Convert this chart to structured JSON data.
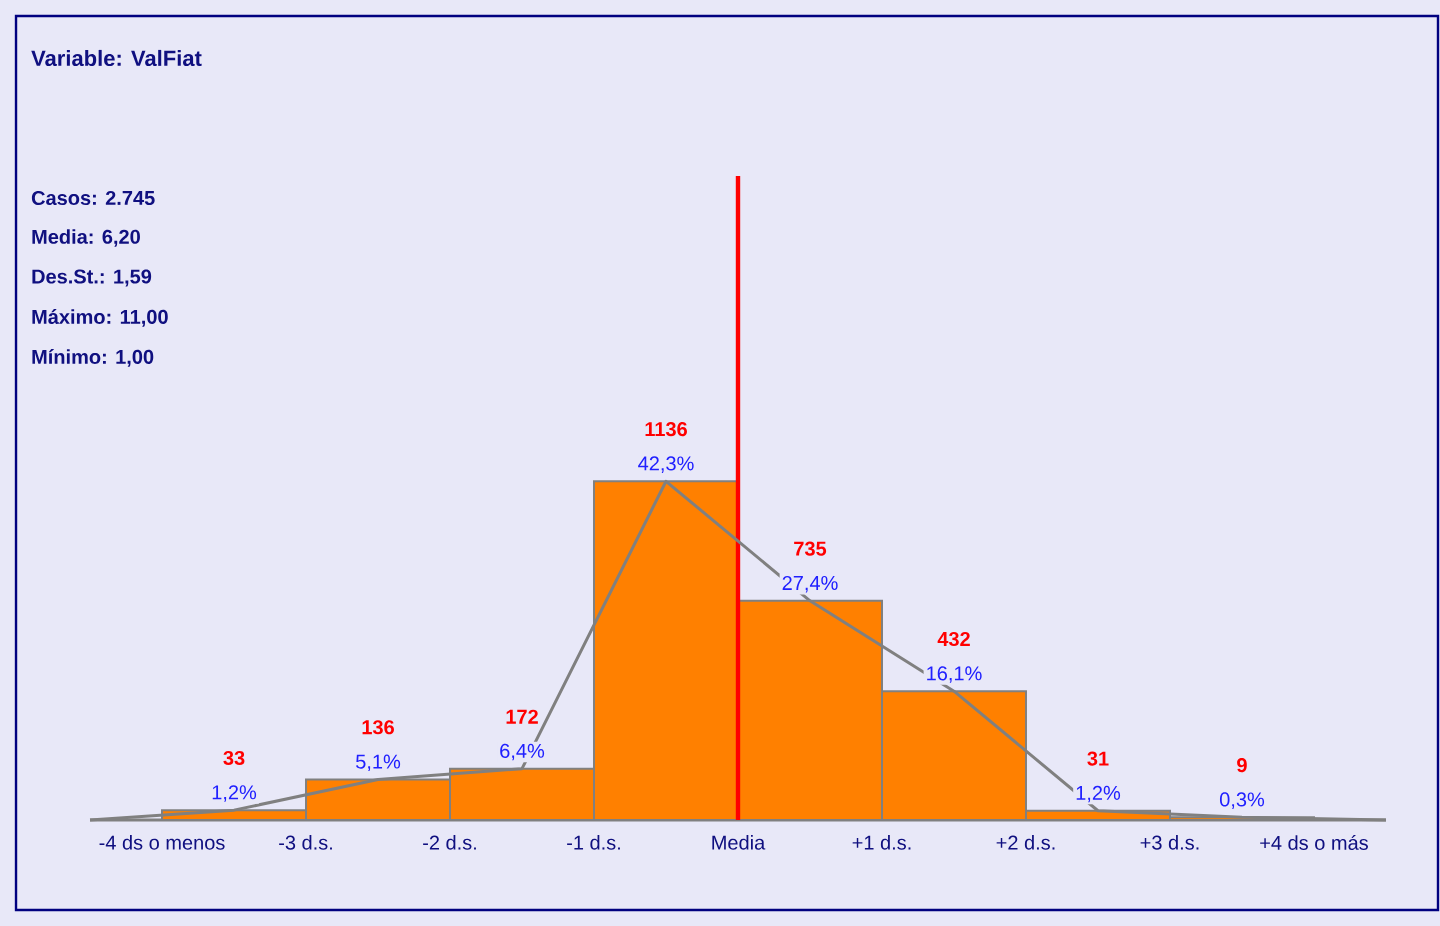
{
  "chart_data": {
    "type": "histogram",
    "title": "Variable: ValFiat",
    "bins": [
      -4,
      -3,
      -2,
      -1,
      0,
      1,
      2,
      3,
      4
    ],
    "values": [
      33,
      136,
      172,
      1136,
      735,
      432,
      31,
      9
    ],
    "color": "#ff8000",
    "value_labels": [
      "33",
      "136",
      "172",
      "1136",
      "735",
      "432",
      "31",
      "9"
    ],
    "series": [
      {
        "type": "line",
        "x": [
          -4.5,
          -3.5,
          -2.5,
          -1.5,
          -0.5,
          0.5,
          1.5,
          2.5,
          3.5,
          4.5
        ],
        "values": [
          0,
          33,
          136,
          172,
          1136,
          735,
          432,
          31,
          9,
          0
        ],
        "color": "#808080"
      }
    ],
    "xlim": [
      -4.5,
      4.5
    ],
    "ylim": [
      0,
      2160
    ],
    "xticks": [
      {
        "value": -4,
        "label": "-4 ds o menos"
      },
      {
        "value": -3,
        "label": "-3 d.s."
      },
      {
        "value": -2,
        "label": "-2 d.s."
      },
      {
        "value": -1,
        "label": "-1 d.s."
      },
      {
        "value": 0,
        "label": "Media"
      },
      {
        "value": 1,
        "label": "+1 d.s."
      },
      {
        "value": 2,
        "label": "+2 d.s."
      },
      {
        "value": 3,
        "label": "+3 d.s."
      },
      {
        "value": 4,
        "label": "+4 ds o más"
      }
    ],
    "tick_labels": "x",
    "ref_lines": [
      {
        "axis": "x",
        "value": 0,
        "color": "#ff0000"
      }
    ],
    "annotations": [
      "Casos:   2.745",
      "Media:   6,20",
      "Des.St.:   1,59",
      "Máximo:  11,00",
      "Mínimo:   1,00",
      {
        "text": "1,2%",
        "x": -3.5,
        "y": 33
      },
      {
        "text": "5,1%",
        "x": -2.5,
        "y": 136
      },
      {
        "text": "6,4%",
        "x": -1.5,
        "y": 172
      },
      {
        "text": "42,3%",
        "x": -0.5,
        "y": 1136
      },
      {
        "text": "27,4%",
        "x": 0.5,
        "y": 735
      },
      {
        "text": "16,1%",
        "x": 1.5,
        "y": 432
      },
      {
        "text": "1,2%",
        "x": 2.5,
        "y": 31
      },
      {
        "text": "0,3%",
        "x": 3.5,
        "y": 9
      }
    ]
  }
}
